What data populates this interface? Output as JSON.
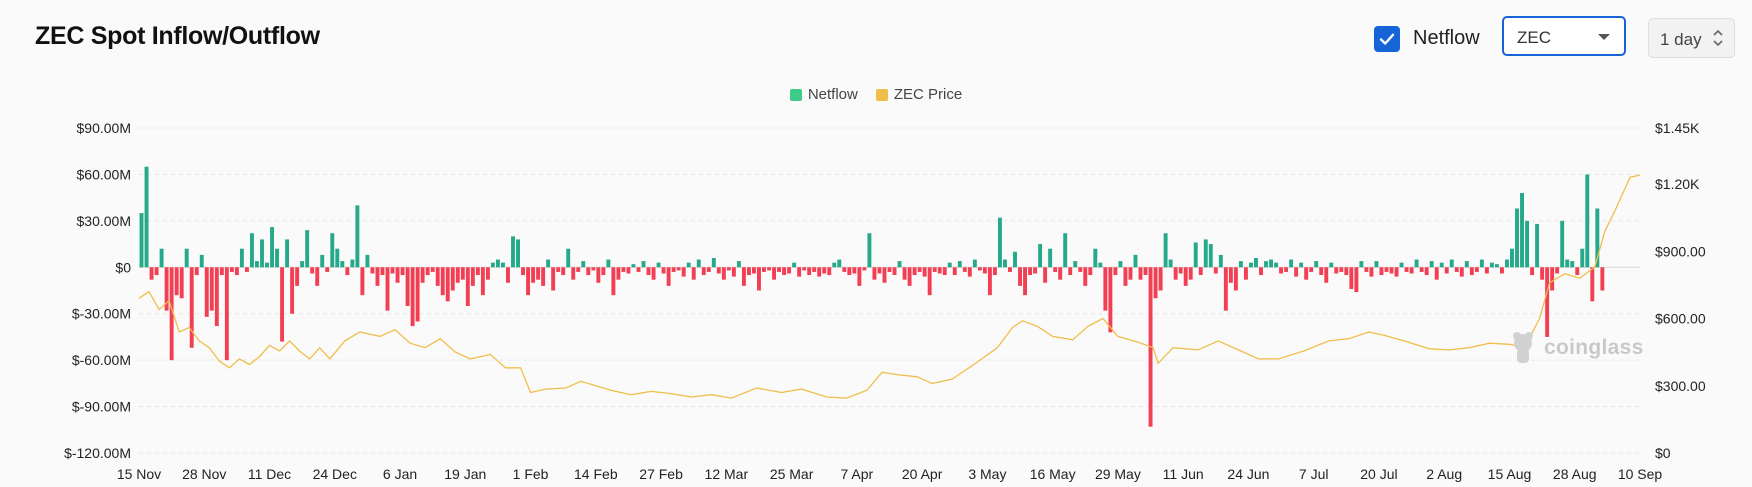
{
  "header": {
    "title": "ZEC Spot Inflow/Outflow",
    "netflow_checkbox_label": "Netflow",
    "coin_select_value": "ZEC",
    "period_select_value": "1 day"
  },
  "watermark": {
    "text": "coinglass"
  },
  "chart_data": {
    "type": "bar",
    "title": "",
    "legend": [
      {
        "name": "Netflow",
        "color": "#3ecb87"
      },
      {
        "name": "ZEC Price",
        "color": "#f0be4a"
      }
    ],
    "legend_position": "top-center",
    "grid": true,
    "positive_color": "#26a98a",
    "negative_color": "#f23f54",
    "price_color": "#f0be4a",
    "y_left": {
      "min": -120,
      "max": 90,
      "ticks": [
        90,
        60,
        30,
        0,
        -30,
        -60,
        -90,
        -120
      ],
      "tick_labels": [
        "$90.00M",
        "$60.00M",
        "$30.00M",
        "$0",
        "$-30.00M",
        "$-60.00M",
        "$-90.00M",
        "$-120.00M"
      ]
    },
    "y_right": {
      "min": 0,
      "max": 1450,
      "ticks": [
        1450,
        1200,
        900,
        600,
        300,
        0
      ],
      "tick_labels": [
        "$1.45K",
        "$1.20K",
        "$900.00",
        "$600.00",
        "$300.00",
        "$0"
      ]
    },
    "x_date_start": "2024-11-15",
    "x_date_end": "2025-09-10",
    "x_ticks": [
      "15 Nov",
      "28 Nov",
      "11 Dec",
      "24 Dec",
      "6 Jan",
      "19 Jan",
      "1 Feb",
      "14 Feb",
      "27 Feb",
      "12 Mar",
      "25 Mar",
      "7 Apr",
      "20 Apr",
      "3 May",
      "16 May",
      "29 May",
      "11 Jun",
      "24 Jun",
      "7 Jul",
      "20 Jul",
      "2 Aug",
      "15 Aug",
      "28 Aug",
      "10 Sep"
    ],
    "netflow_weekly_usd_m": [
      {
        "week_of": "2024-11-15",
        "values": [
          35,
          65,
          -8,
          -5,
          12,
          -28,
          -60
        ]
      },
      {
        "week_of": "2024-11-22",
        "values": [
          -18,
          -20,
          12,
          -52,
          -5,
          8,
          -32
        ]
      },
      {
        "week_of": "2024-11-29",
        "values": [
          -28,
          -38,
          -5,
          -60,
          -3,
          -5,
          12
        ]
      },
      {
        "week_of": "2024-12-06",
        "values": [
          -3,
          22,
          4,
          18,
          3,
          26,
          12
        ]
      },
      {
        "week_of": "2024-12-13",
        "values": [
          -48,
          18,
          -30,
          -12,
          4,
          24,
          -4
        ]
      },
      {
        "week_of": "2024-12-20",
        "values": [
          -12,
          8,
          -3,
          22,
          12,
          4,
          -5
        ]
      },
      {
        "week_of": "2024-12-27",
        "values": [
          5,
          40,
          -18,
          8,
          -4,
          -12,
          -5
        ]
      },
      {
        "week_of": "2025-01-03",
        "values": [
          -28,
          -4,
          -10,
          -5,
          -25,
          -38,
          -35
        ]
      },
      {
        "week_of": "2025-01-10",
        "values": [
          -10,
          -5,
          -3,
          -12,
          -18,
          -22,
          -15
        ]
      },
      {
        "week_of": "2025-01-17",
        "values": [
          -10,
          -8,
          -25,
          -12,
          -5,
          -18,
          -8
        ]
      },
      {
        "week_of": "2025-01-24",
        "values": [
          3,
          5,
          3,
          -10,
          20,
          18,
          -5
        ]
      },
      {
        "week_of": "2025-01-31",
        "values": [
          -18,
          -10,
          -8,
          -12,
          5,
          -15,
          -3
        ]
      },
      {
        "week_of": "2025-02-07",
        "values": [
          -5,
          12,
          -8,
          -3,
          4,
          -5,
          -2
        ]
      },
      {
        "week_of": "2025-02-14",
        "values": [
          -10,
          -5,
          5,
          -18,
          -8,
          -3,
          -4
        ]
      },
      {
        "week_of": "2025-02-21",
        "values": [
          2,
          -3,
          4,
          -5,
          -8,
          3,
          -4
        ]
      },
      {
        "week_of": "2025-02-28",
        "values": [
          -12,
          -3,
          -2,
          -6,
          3,
          -8,
          5
        ]
      },
      {
        "week_of": "2025-03-07",
        "values": [
          -5,
          -3,
          6,
          -4,
          -8,
          -2,
          -6
        ]
      },
      {
        "week_of": "2025-03-14",
        "values": [
          4,
          -12,
          -5,
          -4,
          -15,
          -3,
          -2
        ]
      },
      {
        "week_of": "2025-03-21",
        "values": [
          -8,
          -3,
          -5,
          -4,
          3,
          -6,
          -2
        ]
      },
      {
        "week_of": "2025-03-28",
        "values": [
          -5,
          -3,
          -6,
          -4,
          -5,
          3,
          5
        ]
      },
      {
        "week_of": "2025-04-04",
        "values": [
          -3,
          -5,
          -4,
          -12,
          -2,
          22,
          -8
        ]
      },
      {
        "week_of": "2025-04-11",
        "values": [
          -4,
          -10,
          -3,
          -5,
          4,
          -8,
          -12
        ]
      },
      {
        "week_of": "2025-04-18",
        "values": [
          -5,
          -3,
          -6,
          -18,
          -3,
          -4,
          -5
        ]
      },
      {
        "week_of": "2025-04-25",
        "values": [
          3,
          -5,
          4,
          -3,
          -6,
          5,
          -2
        ]
      },
      {
        "week_of": "2025-05-02",
        "values": [
          -4,
          -18,
          -5,
          32,
          5,
          -3,
          10
        ]
      },
      {
        "week_of": "2025-05-09",
        "values": [
          -12,
          -18,
          -5,
          -4,
          15,
          -10,
          12
        ]
      },
      {
        "week_of": "2025-05-16",
        "values": [
          -3,
          -8,
          22,
          -5,
          4,
          -3,
          -12
        ]
      },
      {
        "week_of": "2025-05-23",
        "values": [
          -5,
          12,
          3,
          -28,
          -42,
          -5,
          4
        ]
      },
      {
        "week_of": "2025-05-30",
        "values": [
          -12,
          -8,
          8,
          -8,
          -5,
          -103,
          -20
        ]
      },
      {
        "week_of": "2025-06-06",
        "values": [
          -15,
          22,
          5,
          -8,
          -4,
          -12,
          -8
        ]
      },
      {
        "week_of": "2025-06-13",
        "values": [
          16,
          -5,
          18,
          15,
          -4,
          8,
          -28
        ]
      },
      {
        "week_of": "2025-06-20",
        "values": [
          -10,
          -15,
          4,
          -8,
          3,
          6,
          -5
        ]
      },
      {
        "week_of": "2025-06-27",
        "values": [
          4,
          5,
          3,
          -4,
          -3,
          5,
          -6
        ]
      },
      {
        "week_of": "2025-07-04",
        "values": [
          3,
          -8,
          -3,
          4,
          -5,
          -10,
          3
        ]
      },
      {
        "week_of": "2025-07-11",
        "values": [
          -4,
          -3,
          -5,
          -14,
          -16,
          4,
          -3
        ]
      },
      {
        "week_of": "2025-07-18",
        "values": [
          -6,
          4,
          -5,
          -3,
          -4,
          -6,
          3
        ]
      },
      {
        "week_of": "2025-07-25",
        "values": [
          -3,
          -4,
          5,
          -3,
          -5,
          4,
          -8
        ]
      },
      {
        "week_of": "2025-08-01",
        "values": [
          3,
          -4,
          5,
          -3,
          -6,
          4,
          -5
        ]
      },
      {
        "week_of": "2025-08-08",
        "values": [
          -3,
          5,
          -4,
          3,
          2,
          -4,
          5
        ]
      },
      {
        "week_of": "2025-08-15",
        "values": [
          12,
          38,
          48,
          30,
          -5,
          28,
          -8
        ]
      },
      {
        "week_of": "2025-08-22",
        "values": [
          -45,
          -15,
          -4,
          30,
          5,
          4,
          -5
        ]
      },
      {
        "week_of": "2025-08-29",
        "values": [
          12,
          60,
          -22,
          38,
          -15
        ]
      }
    ],
    "price_knots_usd": [
      [
        "2024-11-15",
        690
      ],
      [
        "2024-11-17",
        720
      ],
      [
        "2024-11-19",
        640
      ],
      [
        "2024-11-21",
        680
      ],
      [
        "2024-11-23",
        540
      ],
      [
        "2024-11-25",
        560
      ],
      [
        "2024-11-27",
        500
      ],
      [
        "2024-11-29",
        470
      ],
      [
        "2024-12-01",
        410
      ],
      [
        "2024-12-03",
        380
      ],
      [
        "2024-12-05",
        420
      ],
      [
        "2024-12-07",
        395
      ],
      [
        "2024-12-09",
        430
      ],
      [
        "2024-12-11",
        480
      ],
      [
        "2024-12-13",
        455
      ],
      [
        "2024-12-15",
        500
      ],
      [
        "2024-12-17",
        455
      ],
      [
        "2024-12-19",
        420
      ],
      [
        "2024-12-21",
        470
      ],
      [
        "2024-12-23",
        420
      ],
      [
        "2024-12-26",
        500
      ],
      [
        "2024-12-29",
        540
      ],
      [
        "2025-01-02",
        520
      ],
      [
        "2025-01-05",
        550
      ],
      [
        "2025-01-08",
        490
      ],
      [
        "2025-01-11",
        470
      ],
      [
        "2025-01-14",
        510
      ],
      [
        "2025-01-17",
        450
      ],
      [
        "2025-01-20",
        420
      ],
      [
        "2025-01-24",
        440
      ],
      [
        "2025-01-27",
        380
      ],
      [
        "2025-01-30",
        380
      ],
      [
        "2025-02-01",
        270
      ],
      [
        "2025-02-04",
        285
      ],
      [
        "2025-02-08",
        290
      ],
      [
        "2025-02-11",
        320
      ],
      [
        "2025-02-14",
        300
      ],
      [
        "2025-02-17",
        280
      ],
      [
        "2025-02-21",
        260
      ],
      [
        "2025-02-25",
        275
      ],
      [
        "2025-03-01",
        265
      ],
      [
        "2025-03-05",
        250
      ],
      [
        "2025-03-09",
        260
      ],
      [
        "2025-03-13",
        245
      ],
      [
        "2025-03-18",
        290
      ],
      [
        "2025-03-23",
        270
      ],
      [
        "2025-03-27",
        285
      ],
      [
        "2025-04-01",
        250
      ],
      [
        "2025-04-05",
        245
      ],
      [
        "2025-04-09",
        280
      ],
      [
        "2025-04-12",
        360
      ],
      [
        "2025-04-15",
        350
      ],
      [
        "2025-04-19",
        340
      ],
      [
        "2025-04-22",
        310
      ],
      [
        "2025-04-26",
        330
      ],
      [
        "2025-04-30",
        390
      ],
      [
        "2025-05-05",
        470
      ],
      [
        "2025-05-08",
        560
      ],
      [
        "2025-05-10",
        590
      ],
      [
        "2025-05-13",
        565
      ],
      [
        "2025-05-16",
        520
      ],
      [
        "2025-05-20",
        505
      ],
      [
        "2025-05-23",
        565
      ],
      [
        "2025-05-26",
        600
      ],
      [
        "2025-05-29",
        520
      ],
      [
        "2025-06-02",
        495
      ],
      [
        "2025-06-05",
        470
      ],
      [
        "2025-06-06",
        400
      ],
      [
        "2025-06-09",
        470
      ],
      [
        "2025-06-14",
        460
      ],
      [
        "2025-06-18",
        500
      ],
      [
        "2025-06-22",
        460
      ],
      [
        "2025-06-26",
        420
      ],
      [
        "2025-06-30",
        420
      ],
      [
        "2025-07-05",
        455
      ],
      [
        "2025-07-10",
        500
      ],
      [
        "2025-07-14",
        510
      ],
      [
        "2025-07-18",
        540
      ],
      [
        "2025-07-21",
        525
      ],
      [
        "2025-07-25",
        500
      ],
      [
        "2025-07-30",
        465
      ],
      [
        "2025-08-03",
        460
      ],
      [
        "2025-08-07",
        470
      ],
      [
        "2025-08-11",
        490
      ],
      [
        "2025-08-15",
        485
      ],
      [
        "2025-08-18",
        470
      ],
      [
        "2025-08-21",
        600
      ],
      [
        "2025-08-23",
        760
      ],
      [
        "2025-08-26",
        800
      ],
      [
        "2025-08-29",
        780
      ],
      [
        "2025-09-01",
        830
      ],
      [
        "2025-09-03",
        990
      ],
      [
        "2025-09-05",
        1080
      ],
      [
        "2025-09-08",
        1230
      ],
      [
        "2025-09-10",
        1240
      ]
    ]
  }
}
